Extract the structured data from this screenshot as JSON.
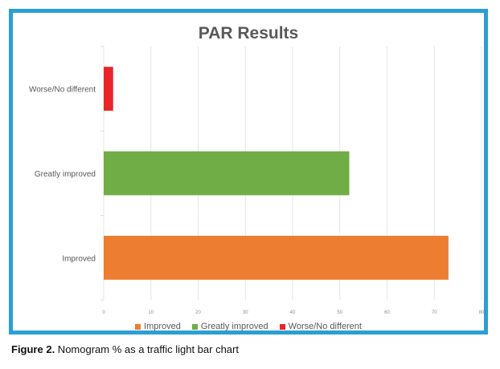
{
  "chart_data": {
    "type": "bar",
    "orientation": "horizontal",
    "title": "PAR Results",
    "categories": [
      "Improved",
      "Greatly improved",
      "Worse/No different"
    ],
    "values": [
      73,
      52,
      2
    ],
    "colors": [
      "#ed7d31",
      "#70ad47",
      "#e8262a"
    ],
    "xlim": [
      0,
      80
    ],
    "xticks": [
      "0",
      "10",
      "20",
      "30",
      "40",
      "50",
      "60",
      "70",
      "80"
    ],
    "grid": true,
    "legend": {
      "position": "bottom",
      "entries": [
        "Improved",
        "Greatly improved",
        "Worse/No different"
      ]
    }
  },
  "caption": {
    "label": "Figure 2.",
    "text": " Nomogram % as a traffic light bar chart"
  }
}
